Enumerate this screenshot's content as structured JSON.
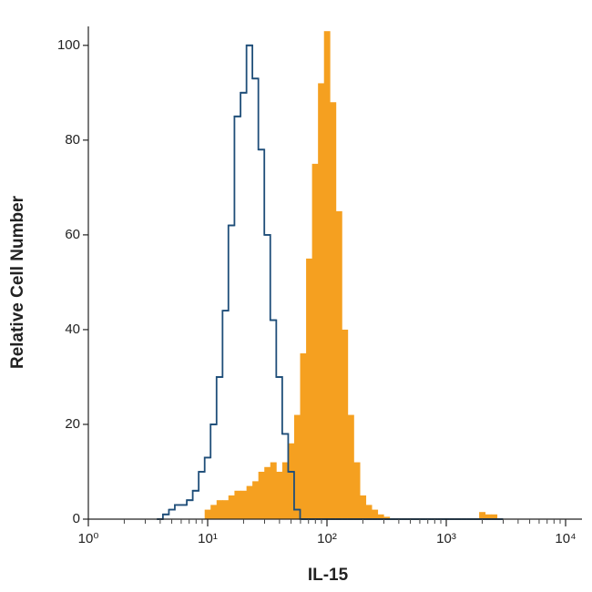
{
  "chart_data": {
    "type": "histogram",
    "x_label": "IL-15",
    "y_label": "Relative Cell Number",
    "x_log": true,
    "x": [
      3.98,
      4.47,
      5.01,
      5.62,
      6.31,
      7.08,
      7.94,
      8.91,
      10,
      11.2,
      12.6,
      14.1,
      15.8,
      17.8,
      20.0,
      22.4,
      25.1,
      28.2,
      31.6,
      35.5,
      39.8,
      44.7,
      50.1,
      56.2,
      63.1,
      70.8,
      79.4,
      89.1,
      100,
      112,
      126,
      141,
      158,
      178,
      200,
      224,
      251,
      282,
      316,
      355,
      398,
      447,
      501,
      562,
      631,
      708,
      794,
      891,
      1000,
      1120,
      1260,
      1410,
      1580,
      1780,
      2000,
      2240,
      2510,
      2820
    ],
    "series": [
      {
        "color": "#1f4e79",
        "style": "outline",
        "values": [
          0,
          1,
          2,
          3,
          3,
          4,
          6,
          10,
          13,
          20,
          30,
          44,
          62,
          85,
          90,
          100,
          93,
          78,
          60,
          42,
          30,
          18,
          10,
          2,
          0,
          0,
          0,
          0,
          0,
          0,
          0,
          0,
          0,
          0,
          0,
          0,
          0,
          0,
          0,
          0,
          0,
          0,
          0,
          0,
          0,
          0,
          0,
          0,
          0,
          0,
          0,
          0,
          0,
          0,
          0,
          0,
          0,
          0
        ]
      },
      {
        "color": "#f5a020",
        "style": "filled",
        "values": [
          0,
          0,
          0,
          0,
          0,
          0,
          0,
          0,
          2,
          3,
          4,
          4,
          5,
          6,
          6,
          7,
          8,
          10,
          11,
          12,
          10,
          12,
          16,
          22,
          35,
          55,
          75,
          92,
          103,
          88,
          65,
          40,
          22,
          12,
          5,
          3,
          2,
          1,
          0.5,
          0,
          0,
          0,
          0,
          0,
          0,
          0,
          0,
          0,
          0,
          0,
          0,
          0,
          0,
          0,
          1.5,
          1,
          1,
          0
        ]
      }
    ],
    "xlim": [
      1,
      10000
    ],
    "xticks": [
      {
        "value": 1,
        "label": "10⁰"
      },
      {
        "value": 10,
        "label": "10¹"
      },
      {
        "value": 100,
        "label": "10²"
      },
      {
        "value": 1000,
        "label": "10³"
      },
      {
        "value": 10000,
        "label": "10⁴"
      }
    ],
    "ylim": [
      0,
      104
    ],
    "yticks": [
      0,
      20,
      40,
      60,
      80,
      100
    ]
  }
}
